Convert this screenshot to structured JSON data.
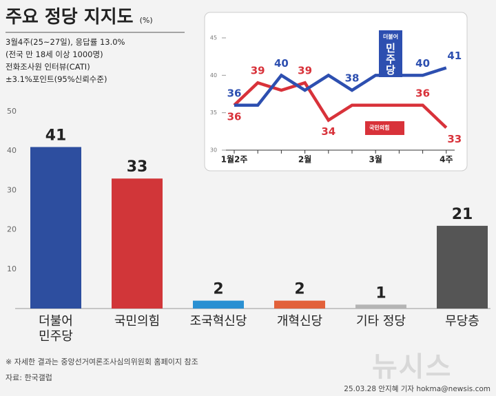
{
  "header": {
    "title": "주요 정당 지지도",
    "unit": "(%)",
    "notes": [
      "3월4주(25~27일), 응답률 13.0%",
      "(전국 만 18세 이상 1000명)",
      "전화조사원 인터뷰(CATI)",
      "±3.1%포인트(95%신뢰수준)"
    ]
  },
  "chart_data": [
    {
      "type": "bar",
      "categories": [
        "더불어\n민주당",
        "국민의힘",
        "조국혁신당",
        "개혁신당",
        "기타 정당",
        "무당층"
      ],
      "values": [
        41,
        33,
        2,
        2,
        1,
        21
      ],
      "colors": [
        "#2d4e9f",
        "#d13639",
        "#2a90d2",
        "#e2613a",
        "#b4b4b4",
        "#555555"
      ],
      "ylim": [
        0,
        50
      ],
      "yticks": [
        10,
        20,
        30,
        40,
        50
      ]
    },
    {
      "type": "line",
      "categories": [
        "1월2주",
        null,
        null,
        "2월",
        null,
        null,
        "3월",
        null,
        null,
        "4주"
      ],
      "series": [
        {
          "name": "더불어\n민주당",
          "color": "#2d4fb0",
          "values": [
            36,
            36,
            40,
            38,
            40,
            38,
            40,
            40,
            40,
            41
          ],
          "value_labels": [
            "36",
            null,
            "40",
            null,
            null,
            "38",
            null,
            null,
            "40",
            "41"
          ]
        },
        {
          "name": "국민의힘",
          "color": "#d8323a",
          "values": [
            36,
            39,
            38,
            39,
            34,
            36,
            36,
            36,
            36,
            33
          ],
          "value_labels": [
            "36",
            "39",
            null,
            "39",
            "34",
            null,
            null,
            null,
            "36",
            "33"
          ]
        }
      ],
      "ylim": [
        30,
        45
      ],
      "yticks": [
        30,
        35,
        40,
        45
      ]
    }
  ],
  "footer": {
    "note": "※ 자세한 결과는 중앙선거여론조사심의위원회 홈페이지 참조",
    "source": "자료: 한국갤럽",
    "credit": "25.03.28 안지혜 기자 hokma@newsis.com",
    "logo": "뉴시스"
  }
}
